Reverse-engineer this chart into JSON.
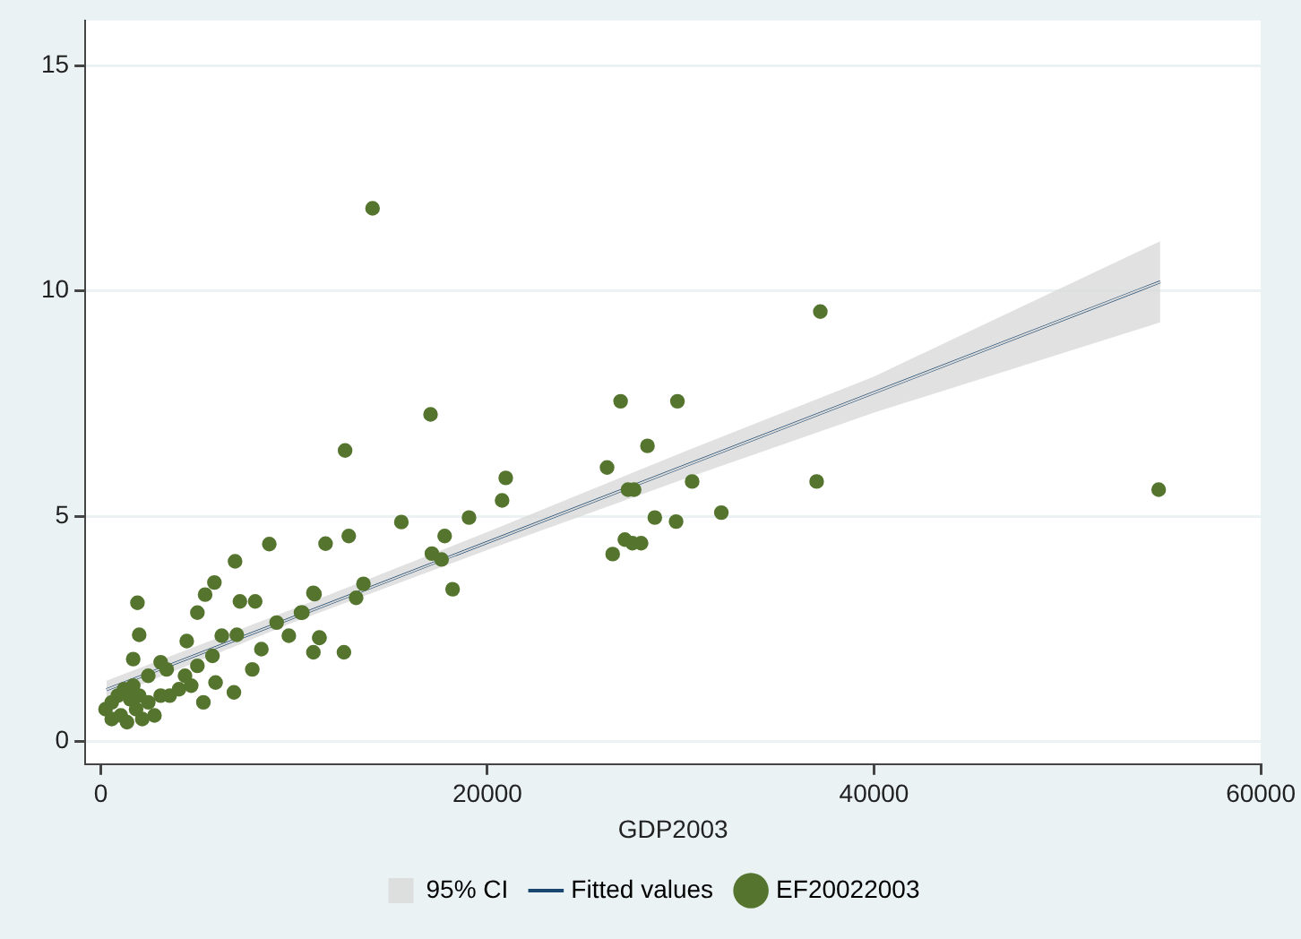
{
  "chart_data": {
    "type": "scatter",
    "xlabel": "GDP2003",
    "xlim": [
      -800,
      60000
    ],
    "xticks": [
      0,
      20000,
      40000,
      60000
    ],
    "ylim": [
      -0.5,
      16
    ],
    "yticks": [
      0,
      5,
      10,
      15
    ],
    "grid": "y",
    "legend": "bottom",
    "series": [
      {
        "name": "95% CI",
        "type": "line",
        "color": "#d9d9d9",
        "x": [
          300,
          10000,
          20000,
          30000,
          40000,
          54800
        ],
        "values": [
          1.15,
          2.76,
          4.42,
          6.08,
          7.74,
          10.2
        ],
        "lower": [
          0.95,
          2.65,
          4.25,
          5.8,
          7.3,
          9.3
        ],
        "upper": [
          1.35,
          2.95,
          4.65,
          6.4,
          8.1,
          11.1
        ]
      },
      {
        "name": "Fitted values",
        "type": "line",
        "color": "#1a476f",
        "x": [
          300,
          54800
        ],
        "values": [
          1.15,
          10.2
        ]
      },
      {
        "name": "EF20022003",
        "marker": "circle",
        "color": "#55752f",
        "x": [
          14060,
          17060,
          12640,
          26890,
          29830,
          28280,
          26190,
          27270,
          27590,
          30590,
          32100,
          28660,
          29760,
          27110,
          27500,
          27950,
          26480,
          20950,
          20760,
          19050,
          15550,
          17790,
          17130,
          17630,
          18200,
          12830,
          11630,
          11060,
          13590,
          13210,
          10430,
          11310,
          12580,
          11000,
          37220,
          37030,
          54720,
          1900,
          1990,
          1680,
          6950,
          8720,
          5880,
          5400,
          5000,
          7200,
          7990,
          4450,
          6260,
          7040,
          9100,
          9730,
          10360,
          11000,
          8310,
          11310,
          7840,
          6890,
          5940,
          5310,
          3410,
          4050,
          2460,
          3100,
          4360,
          5000,
          5780,
          250,
          570,
          880,
          1200,
          1520,
          1830,
          2150,
          570,
          1040,
          1680,
          1990,
          1360,
          2460,
          2780,
          3100,
          3570,
          4680
        ],
        "values": [
          11.83,
          7.26,
          6.46,
          7.55,
          7.55,
          6.56,
          6.08,
          5.59,
          5.59,
          5.77,
          5.08,
          4.97,
          4.88,
          4.48,
          4.4,
          4.4,
          4.16,
          5.85,
          5.35,
          4.97,
          4.87,
          4.56,
          4.17,
          4.04,
          3.38,
          4.56,
          4.39,
          3.27,
          3.5,
          3.19,
          2.86,
          2.3,
          1.98,
          1.98,
          9.54,
          5.77,
          5.59,
          3.08,
          2.37,
          1.83,
          4.0,
          4.38,
          3.53,
          3.26,
          2.86,
          3.11,
          3.11,
          2.23,
          2.35,
          2.37,
          2.64,
          2.35,
          2.86,
          3.3,
          2.05,
          2.31,
          1.6,
          1.09,
          1.31,
          0.87,
          1.6,
          1.16,
          1.46,
          1.76,
          1.46,
          1.68,
          1.9,
          0.72,
          0.5,
          1.02,
          1.16,
          0.94,
          0.72,
          0.5,
          0.87,
          0.58,
          1.24,
          1.02,
          0.43,
          0.87,
          0.58,
          1.02,
          1.02,
          1.24
        ]
      }
    ]
  }
}
